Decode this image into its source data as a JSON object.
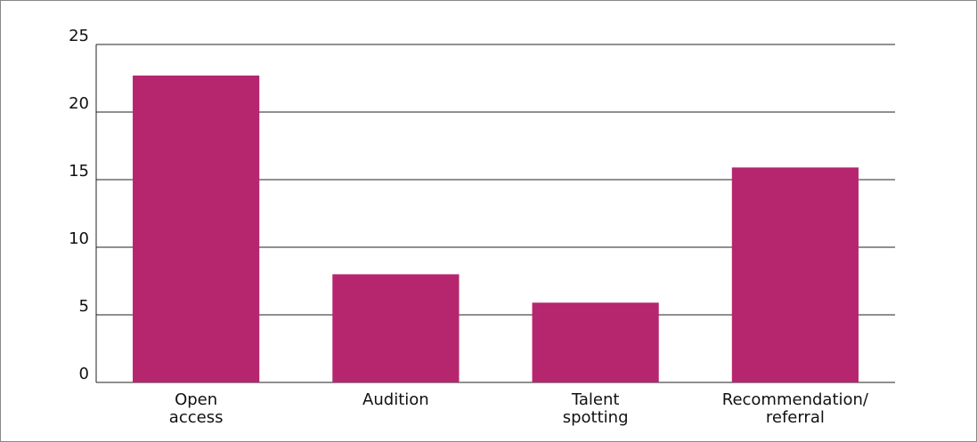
{
  "chart_data": {
    "type": "bar",
    "categories": [
      "Open\naccess",
      "Audition",
      "Talent\nspotting",
      "Recommendation/\nreferral"
    ],
    "values": [
      22.7,
      8,
      5.9,
      15.9
    ],
    "color": "#b5266f",
    "ylim": [
      0,
      25
    ],
    "yticks": [
      0,
      5,
      10,
      15,
      20,
      25
    ],
    "grid": true
  }
}
